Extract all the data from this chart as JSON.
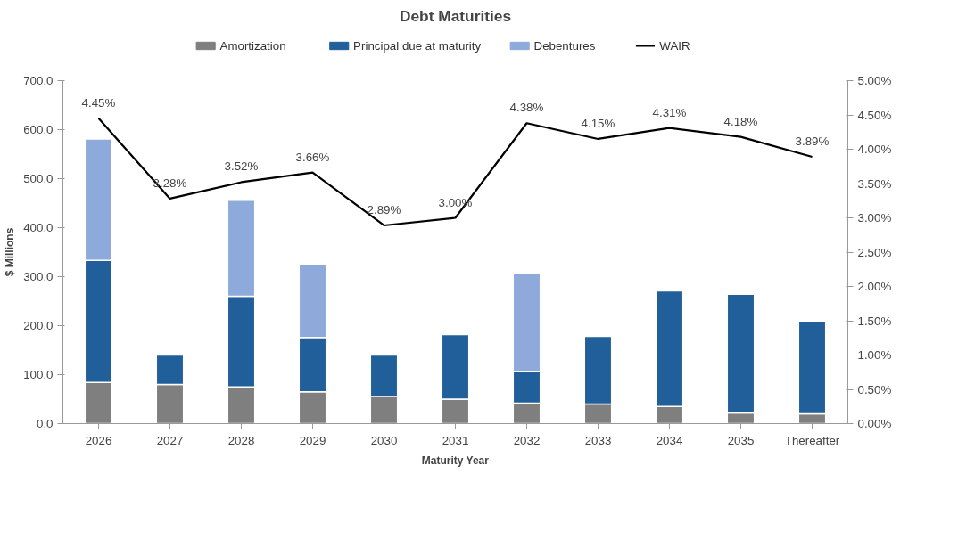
{
  "chart_data": {
    "type": "bar",
    "stacked": true,
    "title": "Debt Maturities",
    "xlabel": "Maturity Year",
    "ylabel": "$ Millions",
    "categories": [
      "2026",
      "2027",
      "2028",
      "2029",
      "2030",
      "2031",
      "2032",
      "2033",
      "2034",
      "2035",
      "Thereafter"
    ],
    "series": [
      {
        "name": "Amortization",
        "color": "#7f7f7f",
        "values": [
          84,
          80,
          75,
          65,
          56,
          50,
          42,
          40,
          35,
          22,
          20
        ]
      },
      {
        "name": "Principal due at maturity",
        "color": "#215f9a",
        "values": [
          249,
          60,
          185,
          111,
          84,
          132,
          64,
          138,
          236,
          242,
          189
        ]
      },
      {
        "name": "Debentures",
        "color": "#8eaadb",
        "values": [
          248,
          null,
          196,
          149,
          null,
          null,
          200,
          null,
          null,
          null,
          null
        ]
      },
      {
        "name": "WAIR",
        "type": "line",
        "axis": "y2",
        "color": "#000000",
        "data_labels": true,
        "value_labels": [
          "4.45%",
          "3.28%",
          "3.52%",
          "3.66%",
          "2.89%",
          "3.00%",
          "4.38%",
          "4.15%",
          "4.31%",
          "4.18%",
          "3.89%"
        ],
        "values": [
          4.45,
          3.28,
          3.52,
          3.66,
          2.89,
          3.0,
          4.38,
          4.15,
          4.31,
          4.18,
          3.89
        ]
      }
    ],
    "ylim": [
      0,
      700
    ],
    "yticks": [
      {
        "value": 0,
        "label": "0.0"
      },
      {
        "value": 100,
        "label": "100.0"
      },
      {
        "value": 200,
        "label": "200.0"
      },
      {
        "value": 300,
        "label": "300.0"
      },
      {
        "value": 400,
        "label": "400.0"
      },
      {
        "value": 500,
        "label": "500.0"
      },
      {
        "value": 600,
        "label": "600.0"
      },
      {
        "value": 700,
        "label": "700.0"
      }
    ],
    "y2lim": [
      0,
      5
    ],
    "y2ticks": [
      {
        "value": 0,
        "label": "0.00%"
      },
      {
        "value": 0.5,
        "label": "0.50%"
      },
      {
        "value": 1,
        "label": "1.00%"
      },
      {
        "value": 1.5,
        "label": "1.50%"
      },
      {
        "value": 2,
        "label": "2.00%"
      },
      {
        "value": 2.5,
        "label": "2.50%"
      },
      {
        "value": 3,
        "label": "3.00%"
      },
      {
        "value": 3.5,
        "label": "3.50%"
      },
      {
        "value": 4,
        "label": "4.00%"
      },
      {
        "value": 4.5,
        "label": "4.50%"
      },
      {
        "value": 5,
        "label": "5.00%"
      }
    ],
    "legend": "top",
    "grid": false
  }
}
